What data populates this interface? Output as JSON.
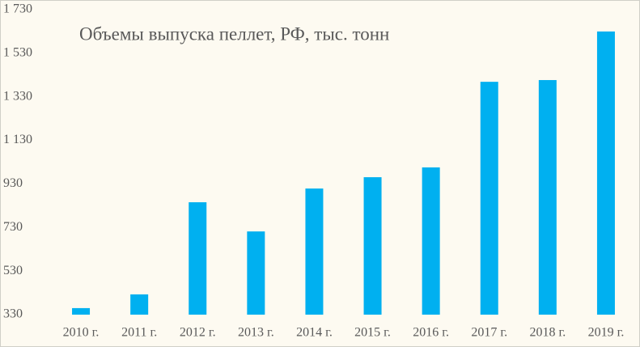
{
  "chart_data": {
    "type": "bar",
    "title": "Объемы выпуска пеллет, РФ, тыс. тонн",
    "categories": [
      "2010 г.",
      "2011 г.",
      "2012 г.",
      "2013 г.",
      "2014 г.",
      "2015 г.",
      "2016 г.",
      "2017 г.",
      "2018 г.",
      "2019 г."
    ],
    "values": [
      360,
      423,
      846,
      712,
      909,
      961,
      1006,
      1399,
      1407,
      1630
    ],
    "color": "#00b0f0",
    "ylim": [
      330,
      1730
    ],
    "yticks": [
      330,
      530,
      730,
      930,
      {
        "value": 1130,
        "label": "1 130"
      },
      {
        "value": 1330,
        "label": "1 330"
      },
      {
        "value": 1530,
        "label": "1 530"
      },
      {
        "value": 1730,
        "label": "1 730"
      }
    ],
    "grid": false
  }
}
